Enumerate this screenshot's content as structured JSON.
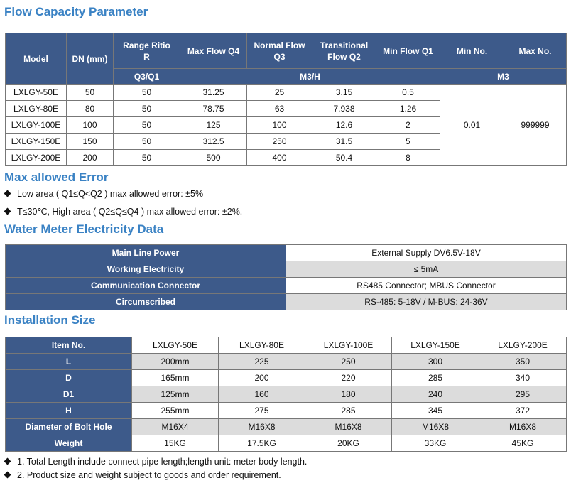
{
  "flow": {
    "title": "Flow Capacity Parameter",
    "headers": {
      "model": "Model",
      "dn": "DN (mm)",
      "range_l1": "Range Ritio",
      "range_l2": "R",
      "max_q4": "Max Flow Q4",
      "normal_l1": "Normal Flow",
      "normal_l2": "Q3",
      "trans_l1": "Transitional",
      "trans_l2": "Flow Q2",
      "min_q1": "Min Flow Q1",
      "min_no": "Min No.",
      "max_no": "Max No.",
      "unit_q3q1": "Q3/Q1",
      "unit_m3h": "M3/H",
      "unit_m3": "M3"
    },
    "rows": [
      [
        "LXLGY-50E",
        "50",
        "50",
        "31.25",
        "25",
        "3.15",
        "0.5"
      ],
      [
        "LXLGY-80E",
        "80",
        "50",
        "78.75",
        "63",
        "7.938",
        "1.26"
      ],
      [
        "LXLGY-100E",
        "100",
        "50",
        "125",
        "100",
        "12.6",
        "2"
      ],
      [
        "LXLGY-150E",
        "150",
        "50",
        "312.5",
        "250",
        "31.5",
        "5"
      ],
      [
        "LXLGY-200E",
        "200",
        "50",
        "500",
        "400",
        "50.4",
        "8"
      ]
    ],
    "min_no_value": "0.01",
    "max_no_value": "999999"
  },
  "error": {
    "title": "Max allowed Error",
    "items": [
      "Low area ( Q1≤Q<Q2 ) max allowed error: ±5%",
      "T≤30℃, High area ( Q2≤Q≤Q4 ) max allowed error: ±2%."
    ]
  },
  "electric": {
    "title": "Water Meter Electricity Data",
    "rows": [
      [
        "Main Line Power",
        "External Supply DV6.5V-18V"
      ],
      [
        "Working Electricity",
        "≤ 5mA"
      ],
      [
        "Communication Connector",
        "RS485 Connector; MBUS Connector"
      ],
      [
        "Circumscribed",
        "RS-485: 5-18V / M-BUS: 24-36V"
      ]
    ]
  },
  "install": {
    "title": "Installation Size",
    "header": [
      "Item No.",
      "LXLGY-50E",
      "LXLGY-80E",
      "LXLGY-100E",
      "LXLGY-150E",
      "LXLGY-200E"
    ],
    "rows": [
      [
        "L",
        "200mm",
        "225",
        "250",
        "300",
        "350"
      ],
      [
        "D",
        "165mm",
        "200",
        "220",
        "285",
        "340"
      ],
      [
        "D1",
        "125mm",
        "160",
        "180",
        "240",
        "295"
      ],
      [
        "H",
        "255mm",
        "275",
        "285",
        "345",
        "372"
      ],
      [
        "Diameter of Bolt Hole",
        "M16X4",
        "M16X8",
        "M16X8",
        "M16X8",
        "M16X8"
      ],
      [
        "Weight",
        "15KG",
        "17.5KG",
        "20KG",
        "33KG",
        "45KG"
      ]
    ],
    "notes": [
      "1. Total Length include connect pipe length;length unit: meter body length.",
      "2. Product size and weight subject to goods and order requirement."
    ]
  }
}
